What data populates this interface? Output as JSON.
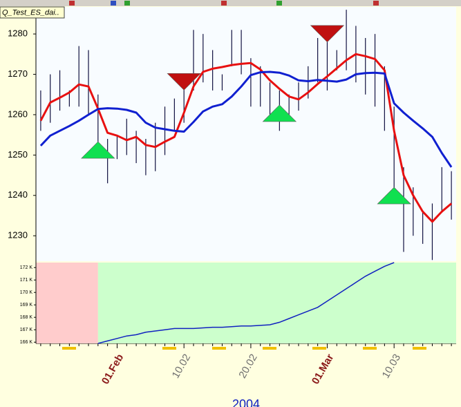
{
  "window": {
    "tab": "Q_Test_ES_dai.."
  },
  "chart_data": [
    {
      "type": "ohlc",
      "categories": [
        null,
        null,
        null,
        null,
        null,
        null,
        null,
        null,
        "01.Feb",
        null,
        null,
        null,
        null,
        null,
        null,
        "10.02",
        null,
        null,
        null,
        null,
        null,
        null,
        "20.02",
        null,
        null,
        null,
        null,
        null,
        null,
        null,
        "01.Mar",
        null,
        null,
        null,
        null,
        null,
        null,
        "10.03",
        null,
        null,
        null,
        null,
        null,
        null
      ],
      "label_colors": [
        null,
        null,
        null,
        null,
        null,
        null,
        null,
        null,
        "#8b1a1a",
        null,
        null,
        null,
        null,
        null,
        null,
        "#707070",
        null,
        null,
        null,
        null,
        null,
        null,
        "#707070",
        null,
        null,
        null,
        null,
        null,
        null,
        null,
        "#8b1a1a",
        null,
        null,
        null,
        null,
        null,
        null,
        "#707070",
        null,
        null,
        null,
        null,
        null,
        null
      ],
      "xlabel": "2004",
      "high": [
        1266,
        1270,
        1271,
        1266,
        1277,
        1276,
        1265,
        1254,
        1255,
        1259,
        1256,
        1254,
        1258,
        1262,
        1264,
        1270,
        1281,
        1280,
        1276,
        1270,
        1281,
        1281,
        1274,
        1272,
        1268,
        1266,
        1265,
        1268,
        1272,
        1279,
        1278,
        1276,
        1286,
        1282,
        1279,
        1280,
        1272,
        1262,
        1247,
        1242,
        1236,
        1238,
        1247,
        1246
      ],
      "low": [
        1256,
        1258,
        1261,
        1262,
        1262,
        1260,
        1252,
        1243,
        1249,
        1250,
        1248,
        1245,
        1246,
        1250,
        1256,
        1258,
        1266,
        1268,
        1266,
        1266,
        1272,
        1270,
        1262,
        1262,
        1259,
        1256,
        1260,
        1261,
        1264,
        1268,
        1266,
        1271,
        1271,
        1268,
        1265,
        1262,
        1256,
        1238,
        1226,
        1230,
        1228,
        1224,
        1236,
        1234
      ],
      "bar_color": "#101040",
      "lines": [
        {
          "color": "#e81010",
          "values": [
            1258.5,
            1263,
            1264.2,
            1265.5,
            1267.5,
            1267,
            1261.5,
            1255.5,
            1254.8,
            1253.7,
            1254.5,
            1252.5,
            1252,
            1253.3,
            1254.5,
            1260.5,
            1267,
            1270.6,
            1271.4,
            1271.8,
            1272.3,
            1272.6,
            1272.8,
            1271.2,
            1268.5,
            1266.4,
            1264.5,
            1263.8,
            1265.5,
            1267.6,
            1269.5,
            1271.5,
            1273.5,
            1275,
            1274.5,
            1273.8,
            1271,
            1256,
            1245,
            1240,
            1236,
            1233.5,
            1236,
            1238
          ]
        },
        {
          "color": "#1020d0",
          "values": [
            1252.3,
            1254.8,
            1256,
            1257.2,
            1258.5,
            1260,
            1261.4,
            1261.6,
            1261.5,
            1261.2,
            1260.5,
            1258,
            1256.8,
            1256.4,
            1256,
            1255.8,
            1258.2,
            1260.8,
            1262,
            1262.6,
            1264.5,
            1267,
            1269.8,
            1270.5,
            1270.6,
            1270.4,
            1269.7,
            1268.5,
            1268.3,
            1268.6,
            1268.4,
            1268.2,
            1268.7,
            1270,
            1270.3,
            1270.4,
            1270.2,
            1262.8,
            1260.5,
            1258.5,
            1256.6,
            1254.5,
            1250.5,
            1247
          ]
        }
      ],
      "buy_signals": {
        "color": "#10e050",
        "values": [
          null,
          null,
          null,
          null,
          null,
          null,
          1253.3,
          null,
          null,
          null,
          null,
          null,
          null,
          null,
          null,
          null,
          null,
          null,
          null,
          null,
          null,
          null,
          null,
          null,
          null,
          1262.4,
          null,
          null,
          null,
          null,
          null,
          null,
          null,
          null,
          null,
          null,
          null,
          1242,
          null,
          null,
          null,
          null,
          null,
          null
        ]
      },
      "sell_signals": {
        "color": "#c01010",
        "values": [
          null,
          null,
          null,
          null,
          null,
          null,
          null,
          null,
          null,
          null,
          null,
          null,
          null,
          null,
          null,
          1266.1,
          null,
          null,
          null,
          null,
          null,
          null,
          null,
          null,
          null,
          null,
          null,
          null,
          null,
          null,
          1278,
          null,
          null,
          null,
          null,
          null,
          null,
          null,
          null,
          null,
          null,
          null,
          null,
          null
        ]
      },
      "ylim": [
        1223.7,
        1286.7
      ],
      "yticks": [
        1230,
        1240,
        1250,
        1260,
        1270,
        1280
      ]
    },
    {
      "type": "line",
      "color": "#1020c0",
      "inactive_color": "#ffcccc",
      "active_color": "#ccffcc",
      "values": [
        null,
        null,
        null,
        null,
        null,
        null,
        165.9,
        166.1,
        166.3,
        166.5,
        166.6,
        166.8,
        166.9,
        167.0,
        167.1,
        167.1,
        167.1,
        167.15,
        167.2,
        167.2,
        167.25,
        167.3,
        167.3,
        167.35,
        167.4,
        167.6,
        167.9,
        168.2,
        168.5,
        168.8,
        169.3,
        169.8,
        170.3,
        170.8,
        171.3,
        171.7,
        172.1,
        172.4,
        null,
        null,
        null,
        null,
        null,
        null
      ],
      "ylim": [
        165.9,
        172.4
      ],
      "yticks": [
        {
          "value": 166,
          "label": "166 K"
        },
        {
          "value": 167,
          "label": "167 K"
        },
        {
          "value": 168,
          "label": "168 K"
        },
        {
          "value": 169,
          "label": "169 K"
        },
        {
          "value": 170,
          "label": "170 K"
        },
        {
          "value": 171,
          "label": "171 K"
        },
        {
          "value": 172,
          "label": "172 K"
        }
      ]
    }
  ]
}
